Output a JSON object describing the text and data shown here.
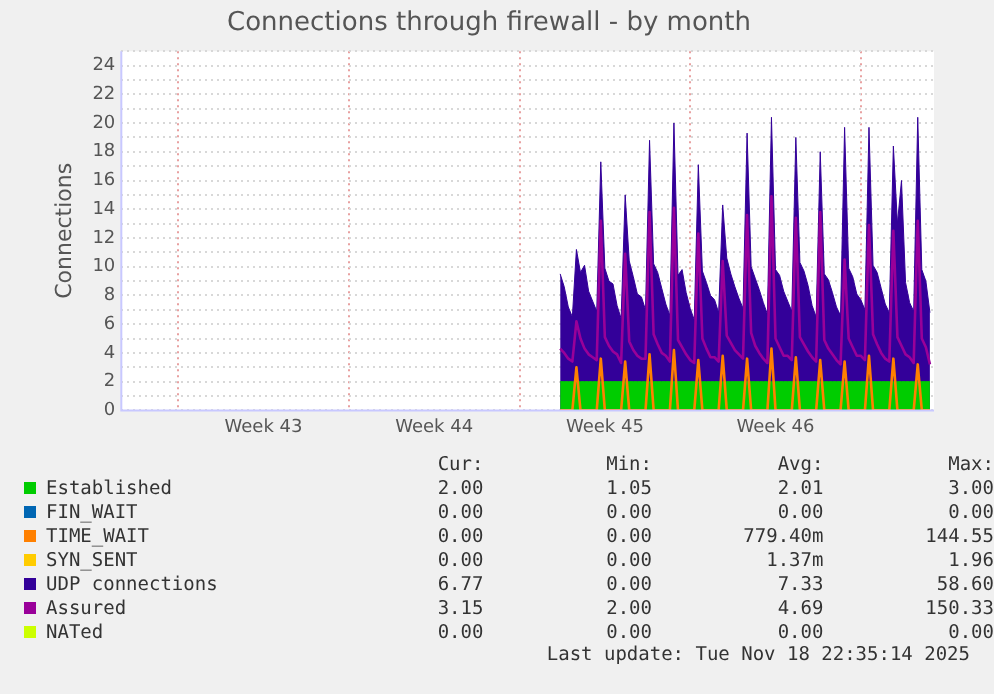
{
  "chart_data": {
    "type": "line",
    "title": "Connections through firewall - by month",
    "ylabel": "Connections",
    "x": [
      "2025-11-03T16:00",
      "2025-11-03T20:00",
      "2025-11-04T00:00",
      "2025-11-04T04:00",
      "2025-11-04T08:00",
      "2025-11-04T12:00",
      "2025-11-04T16:00",
      "2025-11-04T20:00",
      "2025-11-05T00:00",
      "2025-11-05T04:00",
      "2025-11-05T08:00",
      "2025-11-05T12:00",
      "2025-11-05T16:00",
      "2025-11-05T20:00",
      "2025-11-06T00:00",
      "2025-11-06T04:00",
      "2025-11-06T08:00",
      "2025-11-06T12:00",
      "2025-11-06T16:00",
      "2025-11-06T20:00",
      "2025-11-07T00:00",
      "2025-11-07T04:00",
      "2025-11-07T08:00",
      "2025-11-07T12:00",
      "2025-11-07T16:00",
      "2025-11-07T20:00",
      "2025-11-08T00:00",
      "2025-11-08T04:00",
      "2025-11-08T08:00",
      "2025-11-08T12:00",
      "2025-11-08T16:00",
      "2025-11-08T20:00",
      "2025-11-09T00:00",
      "2025-11-09T04:00",
      "2025-11-09T08:00",
      "2025-11-09T12:00",
      "2025-11-09T16:00",
      "2025-11-09T20:00",
      "2025-11-10T00:00",
      "2025-11-10T04:00",
      "2025-11-10T08:00",
      "2025-11-10T12:00",
      "2025-11-10T16:00",
      "2025-11-10T20:00",
      "2025-11-11T00:00",
      "2025-11-11T04:00",
      "2025-11-11T08:00",
      "2025-11-11T12:00",
      "2025-11-11T16:00",
      "2025-11-11T20:00",
      "2025-11-12T00:00",
      "2025-11-12T04:00",
      "2025-11-12T08:00",
      "2025-11-12T12:00",
      "2025-11-12T16:00",
      "2025-11-12T20:00",
      "2025-11-13T00:00",
      "2025-11-13T04:00",
      "2025-11-13T08:00",
      "2025-11-13T12:00",
      "2025-11-13T16:00",
      "2025-11-13T20:00",
      "2025-11-14T00:00",
      "2025-11-14T04:00",
      "2025-11-14T08:00",
      "2025-11-14T12:00",
      "2025-11-14T16:00",
      "2025-11-14T20:00",
      "2025-11-15T00:00",
      "2025-11-15T04:00",
      "2025-11-15T08:00",
      "2025-11-15T12:00",
      "2025-11-15T16:00",
      "2025-11-15T20:00",
      "2025-11-16T00:00",
      "2025-11-16T04:00",
      "2025-11-16T08:00",
      "2025-11-16T12:00",
      "2025-11-16T16:00",
      "2025-11-16T20:00",
      "2025-11-17T00:00",
      "2025-11-17T04:00",
      "2025-11-17T08:00",
      "2025-11-17T12:00",
      "2025-11-17T16:00",
      "2025-11-17T20:00",
      "2025-11-18T00:00",
      "2025-11-18T04:00",
      "2025-11-18T08:00",
      "2025-11-18T12:00",
      "2025-11-18T16:00",
      "2025-11-18T20:00"
    ],
    "series": [
      {
        "name": "Established",
        "type": "area",
        "color": "#00cc00",
        "values": [
          2,
          2,
          2,
          2,
          2,
          2,
          2,
          2,
          2,
          2,
          2,
          2,
          2,
          2,
          2,
          2,
          2,
          2,
          2,
          2,
          2,
          2,
          2,
          2,
          2,
          2,
          2,
          2,
          2,
          2,
          2,
          2,
          2,
          2,
          2,
          2,
          2,
          2,
          2,
          2,
          2,
          2,
          2,
          2,
          2,
          2,
          2,
          2,
          2,
          2,
          2,
          2,
          2,
          2,
          2,
          2,
          2,
          2,
          2,
          2,
          2,
          2,
          2,
          2,
          2,
          2,
          2,
          2,
          2,
          2,
          2,
          2,
          2,
          2,
          2,
          2,
          2,
          2,
          2,
          2,
          2,
          2,
          2,
          2,
          2,
          2,
          2,
          2,
          2,
          2,
          2,
          2
        ]
      },
      {
        "name": "FIN_WAIT",
        "type": "line",
        "color": "#0066b3",
        "values": [
          null,
          null,
          null,
          null,
          null,
          null,
          null,
          null,
          null,
          null,
          null,
          null,
          null,
          null,
          null,
          null,
          null,
          null,
          null,
          null,
          null,
          null,
          null,
          null,
          null,
          null,
          null,
          null,
          null,
          null,
          null,
          null,
          null,
          null,
          null,
          null,
          null,
          null,
          null,
          null,
          null,
          null,
          null,
          null,
          null,
          null,
          null,
          null,
          null,
          null,
          null,
          null,
          null,
          null,
          null,
          null,
          null,
          null,
          null,
          null,
          null,
          null,
          null,
          null,
          null,
          null,
          null,
          null,
          null,
          null,
          null,
          null,
          null,
          null,
          null,
          null,
          null,
          null,
          null,
          null,
          null,
          null,
          null,
          null,
          null,
          null,
          null,
          null,
          null,
          null,
          null,
          null
        ]
      },
      {
        "name": "TIME_WAIT",
        "type": "line",
        "color": "#ff8000",
        "values": [
          0,
          0,
          0,
          0,
          3.0,
          0,
          0,
          0,
          0,
          0,
          3.6,
          0,
          0,
          0,
          0,
          0,
          3.4,
          0,
          0,
          0,
          0,
          0,
          3.9,
          0,
          0,
          0,
          0,
          0,
          4.2,
          0,
          0,
          0,
          0,
          0,
          3.5,
          0,
          0,
          0,
          0,
          0,
          3.8,
          0,
          0,
          0,
          0,
          0,
          3.6,
          0,
          0,
          0,
          0,
          0,
          4.3,
          0,
          0,
          0,
          0,
          0,
          3.7,
          0,
          0,
          0,
          0,
          0,
          3.5,
          0,
          0,
          0,
          0,
          0,
          3.4,
          0,
          0,
          0,
          0,
          0,
          3.8,
          0,
          0,
          0,
          0,
          0,
          3.6,
          0,
          0,
          0,
          0,
          0,
          3.2,
          0,
          0,
          0
        ]
      },
      {
        "name": "SYN_SENT",
        "type": "line",
        "color": "#ffcc00",
        "values": [
          null,
          null,
          null,
          null,
          null,
          null,
          null,
          null,
          null,
          null,
          null,
          null,
          null,
          null,
          null,
          null,
          null,
          null,
          null,
          null,
          null,
          null,
          null,
          null,
          null,
          null,
          null,
          null,
          null,
          null,
          null,
          null,
          null,
          null,
          null,
          null,
          null,
          null,
          null,
          null,
          null,
          null,
          null,
          null,
          null,
          null,
          null,
          null,
          null,
          null,
          null,
          null,
          null,
          null,
          null,
          null,
          null,
          null,
          null,
          null,
          null,
          null,
          null,
          null,
          null,
          null,
          null,
          null,
          null,
          null,
          null,
          null,
          null,
          null,
          null,
          null,
          null,
          null,
          null,
          null,
          null,
          null,
          null,
          null,
          null,
          null,
          null,
          null,
          null,
          null,
          null,
          null
        ]
      },
      {
        "name": "UDP connections",
        "type": "area",
        "color": "#330099",
        "values": [
          9.5,
          8.6,
          7.2,
          6.5,
          11.2,
          9.6,
          10.1,
          8.3,
          7.6,
          6.9,
          17.3,
          9.9,
          9.0,
          8.8,
          7.3,
          6.4,
          15.0,
          10.4,
          9.3,
          8.1,
          7.9,
          7.0,
          18.8,
          10.2,
          9.6,
          8.5,
          7.4,
          6.6,
          20.0,
          9.4,
          9.8,
          8.2,
          7.1,
          6.3,
          17.1,
          9.7,
          8.9,
          8.0,
          7.7,
          6.8,
          14.3,
          10.6,
          9.5,
          8.6,
          7.8,
          7.1,
          19.3,
          10.0,
          9.2,
          8.4,
          7.5,
          6.7,
          20.4,
          9.8,
          9.4,
          8.3,
          7.6,
          6.9,
          19.0,
          10.3,
          9.7,
          8.7,
          7.3,
          6.5,
          18.0,
          9.5,
          9.1,
          8.2,
          7.2,
          6.6,
          19.7,
          9.9,
          9.3,
          8.1,
          7.7,
          7.0,
          19.7,
          10.1,
          9.6,
          8.5,
          7.4,
          6.8,
          18.4,
          13.0,
          16.0,
          8.9,
          7.5,
          6.9,
          20.4,
          9.8,
          9.0,
          6.8
        ]
      },
      {
        "name": "Assured",
        "type": "line",
        "color": "#990099",
        "values": [
          4.3,
          4.0,
          3.6,
          3.4,
          6.2,
          5.0,
          4.3,
          3.9,
          3.7,
          3.5,
          13.2,
          5.1,
          4.5,
          4.1,
          3.9,
          3.3,
          10.9,
          4.8,
          4.2,
          3.8,
          3.6,
          3.6,
          13.8,
          5.3,
          4.6,
          4.0,
          3.8,
          3.4,
          14.1,
          4.9,
          4.4,
          3.9,
          3.5,
          3.3,
          12.3,
          5.0,
          4.3,
          3.7,
          3.7,
          3.4,
          10.4,
          5.2,
          4.7,
          4.2,
          3.9,
          3.6,
          13.6,
          5.4,
          4.5,
          4.0,
          3.6,
          3.3,
          14.9,
          5.0,
          4.4,
          3.8,
          3.8,
          3.5,
          13.4,
          5.1,
          4.6,
          4.1,
          3.7,
          3.4,
          13.8,
          4.9,
          4.3,
          3.9,
          3.5,
          3.2,
          10.5,
          5.0,
          4.4,
          3.8,
          3.8,
          3.5,
          12.9,
          5.3,
          4.6,
          4.0,
          3.6,
          3.4,
          12.5,
          5.1,
          4.5,
          3.9,
          3.7,
          3.3,
          13.2,
          5.0,
          4.4,
          3.2
        ]
      },
      {
        "name": "NATed",
        "type": "line",
        "color": "#ccff00",
        "values": [
          null,
          null,
          null,
          null,
          null,
          null,
          null,
          null,
          null,
          null,
          null,
          null,
          null,
          null,
          null,
          null,
          null,
          null,
          null,
          null,
          null,
          null,
          null,
          null,
          null,
          null,
          null,
          null,
          null,
          null,
          null,
          null,
          null,
          null,
          null,
          null,
          null,
          null,
          null,
          null,
          null,
          null,
          null,
          null,
          null,
          null,
          null,
          null,
          null,
          null,
          null,
          null,
          null,
          null,
          null,
          null,
          null,
          null,
          null,
          null,
          null,
          null,
          null,
          null,
          null,
          null,
          null,
          null,
          null,
          null,
          null,
          null,
          null,
          null,
          null,
          null,
          null,
          null,
          null,
          null,
          null,
          null,
          null,
          null,
          null,
          null,
          null,
          null,
          null,
          null,
          null,
          null
        ]
      }
    ],
    "xlim": [
      "2025-10-16T16:00",
      "2025-11-19T00:00"
    ],
    "xticks": [
      {
        "value": "2025-10-19T00:00",
        "label": null
      },
      {
        "value": "2025-10-22T12:00",
        "label": "Week 43"
      },
      {
        "value": "2025-10-26T00:00",
        "label": null
      },
      {
        "value": "2025-10-29T12:00",
        "label": "Week 44"
      },
      {
        "value": "2025-11-02T00:00",
        "label": null
      },
      {
        "value": "2025-11-05T12:00",
        "label": "Week 45"
      },
      {
        "value": "2025-11-09T00:00",
        "label": null
      },
      {
        "value": "2025-11-12T12:00",
        "label": "Week 46"
      },
      {
        "value": "2025-11-16T00:00",
        "label": null
      }
    ],
    "ylim": [
      0,
      25
    ],
    "yticks": [
      0,
      {
        "value": 1,
        "label": null
      },
      2,
      {
        "value": 3,
        "label": null
      },
      4,
      {
        "value": 5,
        "label": null
      },
      6,
      {
        "value": 7,
        "label": null
      },
      8,
      {
        "value": 9,
        "label": null
      },
      10,
      {
        "value": 11,
        "label": null
      },
      12,
      {
        "value": 13,
        "label": null
      },
      14,
      {
        "value": 15,
        "label": null
      },
      16,
      {
        "value": 17,
        "label": null
      },
      18,
      {
        "value": 19,
        "label": null
      },
      20,
      {
        "value": 21,
        "label": null
      },
      22,
      {
        "value": 23,
        "label": null
      },
      24,
      {
        "value": 25,
        "label": null
      }
    ],
    "grid": true,
    "legend": "bottom",
    "annotations": [
      "Cur:",
      "Min:",
      "Avg:",
      "Max:",
      "2.00",
      "1.05",
      "2.01",
      "3.00",
      "0.00",
      "0.00",
      "0.00",
      "0.00",
      "0.00",
      "0.00",
      "779.40m",
      "144.55",
      "0.00",
      "0.00",
      "1.37m",
      "1.96",
      "6.77",
      "0.00",
      "7.33",
      "58.60",
      "3.15",
      "2.00",
      "4.69",
      "150.33",
      "0.00",
      "0.00",
      "0.00",
      "0.00",
      "Last update: Tue Nov 18 22:35:14 2025"
    ]
  }
}
